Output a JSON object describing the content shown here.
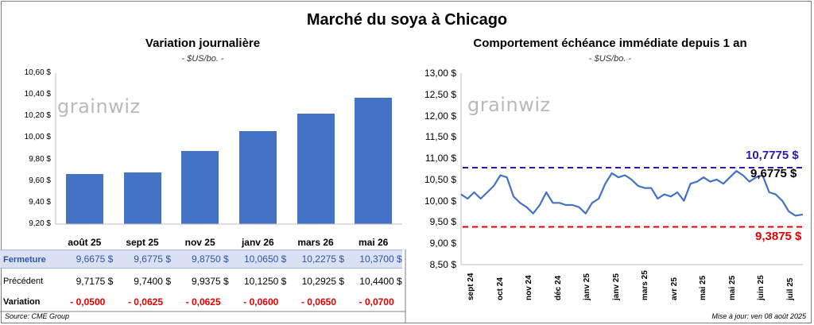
{
  "title": "Marché du soya à Chicago",
  "left": {
    "title": "Variation journalière",
    "unit": "- $US/bo. -",
    "logo": "grainwiz",
    "y_ticks": [
      "10,60 $",
      "10,40 $",
      "10,20 $",
      "10,00 $",
      "9,80 $",
      "9,60 $",
      "9,40 $",
      "9,20 $"
    ],
    "categories": [
      "août 25",
      "sept 25",
      "nov 25",
      "janv 26",
      "mars 26",
      "mai 26"
    ],
    "table": {
      "fermeture_label": "Fermeture",
      "fermeture": [
        "9,6675 $",
        "9,6775 $",
        "9,8750 $",
        "10,0650 $",
        "10,2275 $",
        "10,3700 $"
      ],
      "precedent_label": "Précédent",
      "precedent": [
        "9,7175 $",
        "9,7400 $",
        "9,9375 $",
        "10,1250 $",
        "10,2925 $",
        "10,4400 $"
      ],
      "variation_label": "Variation",
      "variation": [
        "- 0,0500",
        "- 0,0625",
        "- 0,0625",
        "- 0,0600",
        "- 0,0650",
        "- 0,0700"
      ]
    }
  },
  "right": {
    "title": "Comportement échéance immédiate depuis 1 an",
    "unit": "- $US/bo. -",
    "logo": "grainwiz",
    "y_ticks": [
      "13,00 $",
      "12,50 $",
      "12,00 $",
      "11,50 $",
      "11,00 $",
      "10,50 $",
      "10,00 $",
      "9,50 $",
      "9,00 $",
      "8,50 $"
    ],
    "x_ticks": [
      "sept 24",
      "oct 24",
      "nov 24",
      "déc 24",
      "janv 25",
      "janv 25",
      "mars 25",
      "avr 25",
      "mai 25",
      "mai 25",
      "juin 25",
      "juil 25"
    ],
    "annotations": {
      "high": "10,7775 $",
      "current": "9,6775 $",
      "low": "9,3875 $"
    }
  },
  "footer": {
    "source": "Source: CME Group",
    "update": "Mise à jour: ven 08 août 2025"
  },
  "chart_data": [
    {
      "type": "bar",
      "title": "Variation journalière",
      "categories": [
        "août 25",
        "sept 25",
        "nov 25",
        "janv 26",
        "mars 26",
        "mai 26"
      ],
      "values": [
        9.6675,
        9.6775,
        9.875,
        10.065,
        10.2275,
        10.37
      ],
      "ylim": [
        9.2,
        10.6
      ],
      "color": "#4472c4"
    },
    {
      "type": "line",
      "title": "Comportement échéance immédiate depuis 1 an",
      "x_range": [
        "2024-08-08",
        "2025-08-08"
      ],
      "ylim": [
        8.5,
        13.0
      ],
      "series": [
        {
          "color": "#4472c4",
          "x": [
            "2024-08-08",
            "2024-08-15",
            "2024-08-22",
            "2024-08-29",
            "2024-09-05",
            "2024-09-12",
            "2024-09-19",
            "2024-09-26",
            "2024-10-03",
            "2024-10-10",
            "2024-10-17",
            "2024-10-24",
            "2024-10-31",
            "2024-11-07",
            "2024-11-14",
            "2024-11-21",
            "2024-11-28",
            "2024-12-05",
            "2024-12-12",
            "2024-12-19",
            "2024-12-26",
            "2025-01-02",
            "2025-01-09",
            "2025-01-16",
            "2025-01-23",
            "2025-01-30",
            "2025-02-06",
            "2025-02-13",
            "2025-02-20",
            "2025-02-27",
            "2025-03-06",
            "2025-03-13",
            "2025-03-20",
            "2025-03-27",
            "2025-04-03",
            "2025-04-10",
            "2025-04-17",
            "2025-04-24",
            "2025-05-01",
            "2025-05-08",
            "2025-05-15",
            "2025-05-22",
            "2025-05-29",
            "2025-06-05",
            "2025-06-12",
            "2025-06-19",
            "2025-06-26",
            "2025-07-03",
            "2025-07-10",
            "2025-07-17",
            "2025-07-24",
            "2025-07-31",
            "2025-08-08"
          ],
          "y": [
            10.15,
            10.05,
            10.2,
            10.05,
            10.2,
            10.35,
            10.6,
            10.55,
            10.1,
            9.95,
            9.85,
            9.7,
            9.9,
            10.2,
            9.95,
            9.95,
            9.9,
            9.9,
            9.85,
            9.7,
            9.95,
            10.05,
            10.4,
            10.65,
            10.55,
            10.6,
            10.5,
            10.35,
            10.3,
            10.3,
            10.05,
            10.15,
            10.1,
            10.2,
            10.0,
            10.4,
            10.45,
            10.55,
            10.45,
            10.5,
            10.4,
            10.55,
            10.7,
            10.6,
            10.45,
            10.55,
            10.6,
            10.2,
            10.15,
            10.0,
            9.75,
            9.65,
            9.6775
          ]
        }
      ],
      "reference_lines": [
        {
          "value": 10.7775,
          "label": "10,7775 $",
          "color": "#2e1aa8"
        },
        {
          "value": 9.3875,
          "label": "9,3875 $",
          "color": "#e00000"
        }
      ]
    }
  ]
}
